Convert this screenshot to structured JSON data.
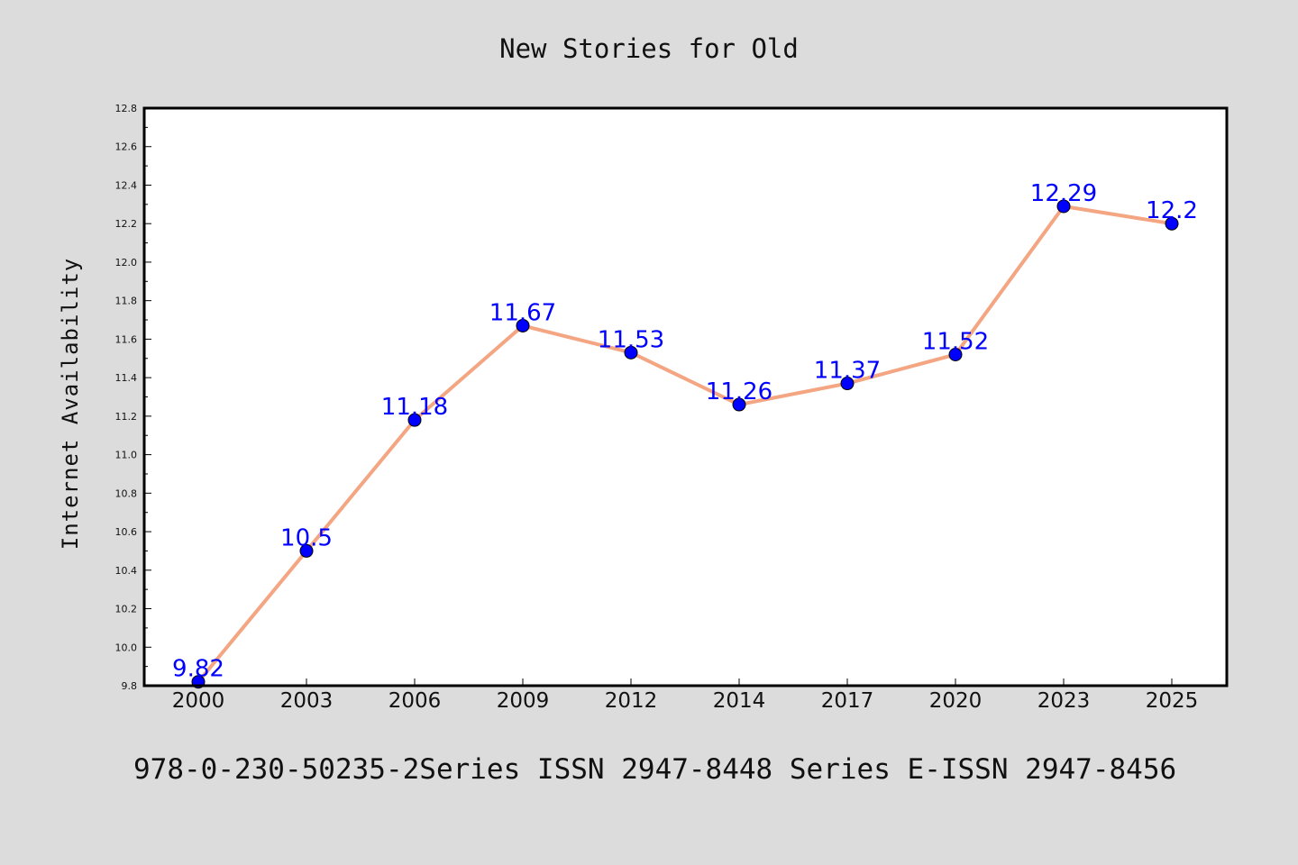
{
  "footer_text": "978-0-230-50235-2Series ISSN 2947-8448 Series E-ISSN 2947-8456",
  "colors": {
    "background": "#dcdcdc",
    "plot_background": "#ffffff",
    "line": "#f4a582",
    "marker": "#0000ff",
    "data_label": "#0000ff"
  },
  "chart_data": {
    "type": "line",
    "title": "New Stories for Old",
    "xlabel": "",
    "ylabel": "Internet Availability",
    "categories": [
      "2000",
      "2003",
      "2006",
      "2009",
      "2012",
      "2014",
      "2017",
      "2020",
      "2023",
      "2025"
    ],
    "series": [
      {
        "values": [
          9.82,
          10.5,
          11.18,
          11.67,
          11.53,
          11.26,
          11.37,
          11.52,
          12.29,
          12.2
        ]
      }
    ],
    "data_labels": [
      "9.82",
      "10.5",
      "11.18",
      "11.67",
      "11.53",
      "11.26",
      "11.37",
      "11.52",
      "12.29",
      "12.2"
    ],
    "ylim": [
      9.8,
      12.8
    ],
    "yticks": [
      "9.8",
      "10.0",
      "10.2",
      "10.4",
      "10.6",
      "10.8",
      "11.0",
      "11.2",
      "11.4",
      "11.6",
      "11.8",
      "12.0",
      "12.2",
      "12.4",
      "12.6",
      "12.8"
    ],
    "grid": false,
    "legend": "none",
    "marker": "circle"
  }
}
